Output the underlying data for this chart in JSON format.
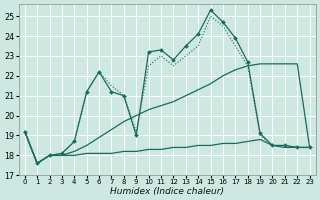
{
  "xlabel": "Humidex (Indice chaleur)",
  "background_color": "#cce8e0",
  "grid_color": "#b8d8d0",
  "line_color": "#1a6b5e",
  "xlim": [
    -0.5,
    23.5
  ],
  "ylim": [
    17.0,
    25.6
  ],
  "yticks": [
    17,
    18,
    19,
    20,
    21,
    22,
    23,
    24,
    25
  ],
  "xticks": [
    0,
    1,
    2,
    3,
    4,
    5,
    6,
    7,
    8,
    9,
    10,
    11,
    12,
    13,
    14,
    15,
    16,
    17,
    18,
    19,
    20,
    21,
    22,
    23
  ],
  "y_flat": [
    19.2,
    17.6,
    18.0,
    18.0,
    18.0,
    18.1,
    18.1,
    18.1,
    18.2,
    18.2,
    18.3,
    18.3,
    18.4,
    18.4,
    18.5,
    18.5,
    18.6,
    18.6,
    18.7,
    18.8,
    18.5,
    18.4,
    18.4,
    18.4
  ],
  "y_diag": [
    19.2,
    17.6,
    18.0,
    18.0,
    18.2,
    18.5,
    18.9,
    19.3,
    19.7,
    20.0,
    20.3,
    20.5,
    20.7,
    21.0,
    21.3,
    21.6,
    22.0,
    22.3,
    22.5,
    22.6,
    22.6,
    22.6,
    22.6,
    18.4
  ],
  "y_jagged": [
    19.2,
    17.6,
    18.0,
    18.1,
    18.7,
    21.2,
    22.2,
    21.2,
    21.0,
    19.0,
    23.2,
    23.3,
    22.8,
    23.5,
    24.1,
    25.3,
    24.7,
    23.9,
    22.7,
    19.1,
    18.5,
    18.5,
    18.4,
    18.4
  ],
  "y_dotted": [
    19.2,
    17.6,
    18.0,
    18.1,
    18.7,
    21.2,
    22.2,
    21.5,
    21.0,
    19.2,
    22.5,
    23.0,
    22.5,
    23.0,
    23.5,
    25.0,
    24.5,
    23.5,
    22.5,
    19.0,
    18.5,
    18.5,
    18.4,
    18.4
  ]
}
